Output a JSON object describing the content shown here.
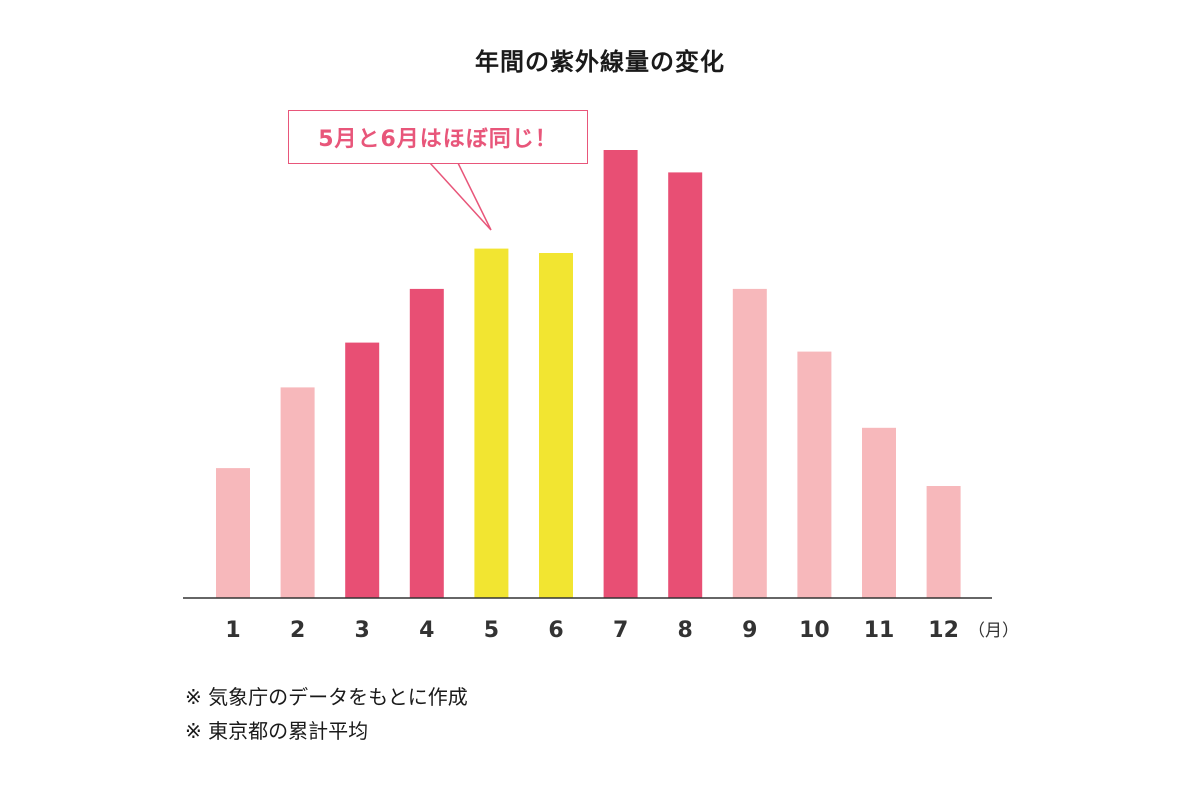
{
  "title": "年間の紫外線量の変化",
  "callout": {
    "text": "5月と6月はほぼ同じ！"
  },
  "colors": {
    "light": "#f7b8bb",
    "strong": "#e84f74",
    "highlight": "#f2e531",
    "axis": "#333333",
    "callout": "#e8567a"
  },
  "chart_data": {
    "type": "bar",
    "title": "年間の紫外線量の変化",
    "categories": [
      "1",
      "2",
      "3",
      "4",
      "5",
      "6",
      "7",
      "8",
      "9",
      "10",
      "11",
      "12"
    ],
    "x_unit": "（月）",
    "values": [
      29,
      47,
      57,
      69,
      78,
      77,
      100,
      95,
      69,
      55,
      38,
      25
    ],
    "value_scale": "relative (no y-axis printed; max bar = 100)",
    "bar_color_roles": [
      "light",
      "light",
      "strong",
      "strong",
      "highlight",
      "highlight",
      "strong",
      "strong",
      "light",
      "light",
      "light",
      "light"
    ],
    "ylim": [
      0,
      100
    ],
    "grid": false,
    "legend": "none"
  },
  "notes": [
    "※ 気象庁のデータをもとに作成",
    "※ 東京都の累計平均"
  ]
}
